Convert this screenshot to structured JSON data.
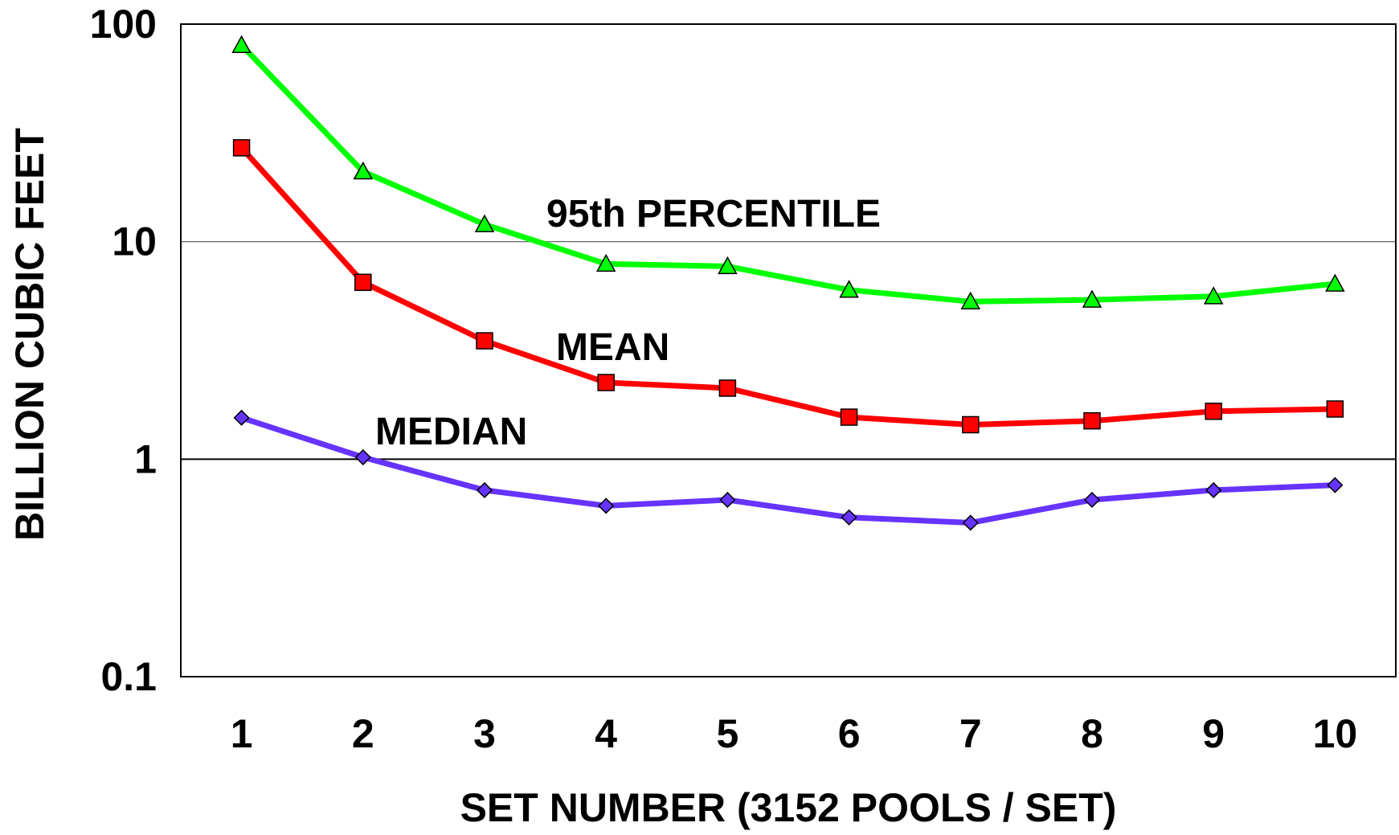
{
  "chart_data": {
    "type": "line",
    "title": "",
    "xlabel": "SET NUMBER (3152 POOLS / SET)",
    "ylabel": "BILLION CUBIC FEET",
    "y_scale": "log",
    "ylim": [
      0.1,
      100
    ],
    "xlim": [
      0.5,
      10.5
    ],
    "y_ticks": [
      0.1,
      1,
      10,
      100
    ],
    "y_tick_labels": [
      "0.1",
      "1",
      "10",
      "100"
    ],
    "categories": [
      "1",
      "2",
      "3",
      "4",
      "5",
      "6",
      "7",
      "8",
      "9",
      "10"
    ],
    "x": [
      1,
      2,
      3,
      4,
      5,
      6,
      7,
      8,
      9,
      10
    ],
    "grid": "horizontal at 1 and 10",
    "legend": "none (series labeled inline)",
    "series": [
      {
        "name": "95th PERCENTILE",
        "color": "#00ff00",
        "marker": "triangle",
        "values": [
          80,
          21,
          12,
          7.9,
          7.7,
          6.0,
          5.3,
          5.4,
          5.6,
          6.4
        ]
      },
      {
        "name": "MEAN",
        "color": "#ff0000",
        "marker": "square",
        "values": [
          27,
          6.5,
          3.5,
          2.25,
          2.12,
          1.56,
          1.44,
          1.5,
          1.66,
          1.7
        ]
      },
      {
        "name": "MEDIAN",
        "color": "#6633ff",
        "marker": "diamond",
        "values": [
          1.55,
          1.02,
          0.72,
          0.61,
          0.65,
          0.54,
          0.51,
          0.65,
          0.72,
          0.76
        ]
      }
    ]
  }
}
